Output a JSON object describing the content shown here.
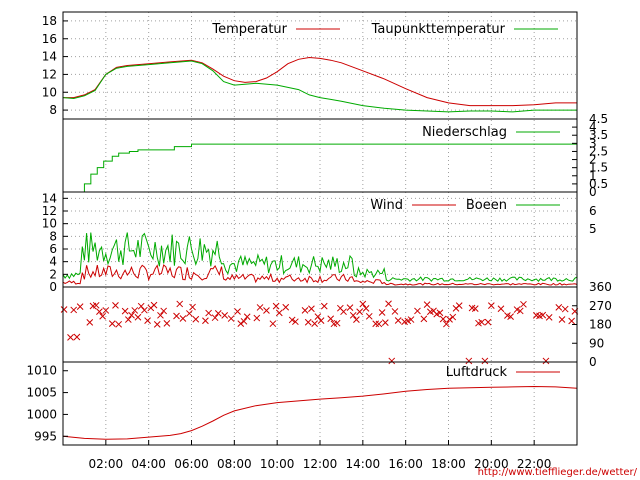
{
  "chart_data": [
    {
      "type": "line",
      "panel": "temperature",
      "series": [
        {
          "name": "Temperatur",
          "color": "#cc0000",
          "x": [
            0,
            0.5,
            1,
            1.5,
            2,
            2.5,
            3,
            4,
            5,
            6,
            6.5,
            7,
            7.5,
            8,
            8.5,
            9,
            9.5,
            10,
            10.5,
            11,
            11.5,
            12,
            12.5,
            13,
            14,
            15,
            16,
            17,
            18,
            19,
            20,
            21,
            22,
            23,
            24
          ],
          "values": [
            9.4,
            9.4,
            9.7,
            10.3,
            12.0,
            12.8,
            13.0,
            13.2,
            13.4,
            13.6,
            13.3,
            12.6,
            11.8,
            11.3,
            11.1,
            11.2,
            11.6,
            12.3,
            13.2,
            13.7,
            13.9,
            13.8,
            13.6,
            13.3,
            12.4,
            11.5,
            10.4,
            9.4,
            8.8,
            8.5,
            8.5,
            8.5,
            8.6,
            8.8,
            8.8
          ]
        },
        {
          "name": "Taupunkttemperatur",
          "color": "#00aa00",
          "x": [
            0,
            0.5,
            1,
            1.5,
            2,
            2.5,
            3,
            4,
            5,
            6,
            6.5,
            7,
            7.5,
            8,
            8.5,
            9,
            10,
            11,
            11.5,
            12,
            12.5,
            13,
            14,
            15,
            16,
            17,
            18,
            19,
            20,
            21,
            22,
            23,
            24
          ],
          "values": [
            9.4,
            9.3,
            9.6,
            10.2,
            12.0,
            12.7,
            12.9,
            13.1,
            13.3,
            13.5,
            13.2,
            12.4,
            11.2,
            10.8,
            10.9,
            11.0,
            10.8,
            10.3,
            9.7,
            9.4,
            9.2,
            9.0,
            8.5,
            8.2,
            8.0,
            7.9,
            7.8,
            7.9,
            7.9,
            7.8,
            8.0,
            8.0,
            8.0
          ]
        }
      ],
      "ylim": [
        7,
        19
      ],
      "yticks": [
        8,
        10,
        12,
        14,
        16,
        18
      ],
      "grid": true,
      "legend": "top-right"
    },
    {
      "type": "line",
      "panel": "precipitation",
      "series": [
        {
          "name": "Niederschlag",
          "color": "#00aa00",
          "x": [
            0,
            0.9,
            1.0,
            1.3,
            1.6,
            1.9,
            2.3,
            2.6,
            3.1,
            3.5,
            5.2,
            6.0,
            24
          ],
          "values": [
            0,
            0,
            0.5,
            1.1,
            1.5,
            1.9,
            2.2,
            2.4,
            2.5,
            2.6,
            2.8,
            2.95,
            2.95
          ]
        }
      ],
      "ylim": [
        0,
        4.5
      ],
      "right_ticks": [
        "0",
        "0.5",
        "1",
        "1.5",
        "2",
        "2.5",
        "3",
        "3.5",
        "4",
        "4.5"
      ],
      "legend": "top-right"
    },
    {
      "type": "line",
      "panel": "wind",
      "series": [
        {
          "name": "Wind",
          "color": "#cc0000"
        },
        {
          "name": "Boeen",
          "color": "#00aa00"
        }
      ],
      "ylim": [
        0,
        15
      ],
      "yticks": [
        0,
        2,
        4,
        6,
        8,
        10,
        12,
        14
      ],
      "right_ticks": [
        "5",
        "6"
      ],
      "grid": true,
      "legend": "top-right"
    },
    {
      "type": "scatter",
      "panel": "wind-direction",
      "ylim": [
        0,
        360
      ],
      "right_ticks": [
        "0",
        "90",
        "180",
        "270",
        "360"
      ],
      "main_band": [
        180,
        270
      ],
      "note": "red crosses mostly between 180 and 300 degrees"
    },
    {
      "type": "line",
      "panel": "pressure",
      "series": [
        {
          "name": "Luftdruck",
          "color": "#cc0000",
          "x": [
            0,
            1,
            2,
            3,
            4,
            5,
            5.5,
            6,
            6.5,
            7,
            7.5,
            8,
            9,
            10,
            11,
            12,
            13,
            14,
            15,
            16,
            17,
            18,
            19,
            20,
            21,
            22,
            23,
            24
          ],
          "values": [
            995.0,
            994.5,
            994.3,
            994.4,
            994.8,
            995.2,
            995.6,
            996.3,
            997.3,
            998.5,
            999.8,
            1000.8,
            1002.0,
            1002.7,
            1003.1,
            1003.5,
            1003.8,
            1004.2,
            1004.7,
            1005.3,
            1005.7,
            1006.0,
            1006.1,
            1006.2,
            1006.3,
            1006.4,
            1006.3,
            1006.0
          ]
        }
      ],
      "ylim": [
        993,
        1012
      ],
      "yticks": [
        995,
        1000,
        1005,
        1010
      ],
      "legend": "top-right"
    }
  ],
  "xaxis": {
    "ticks": [
      "02:00",
      "04:00",
      "06:00",
      "08:00",
      "10:00",
      "12:00",
      "14:00",
      "16:00",
      "18:00",
      "20:00",
      "22:00"
    ],
    "range": [
      0,
      24
    ]
  },
  "source_url": "http://www.tiefflieger.de/wetter/"
}
